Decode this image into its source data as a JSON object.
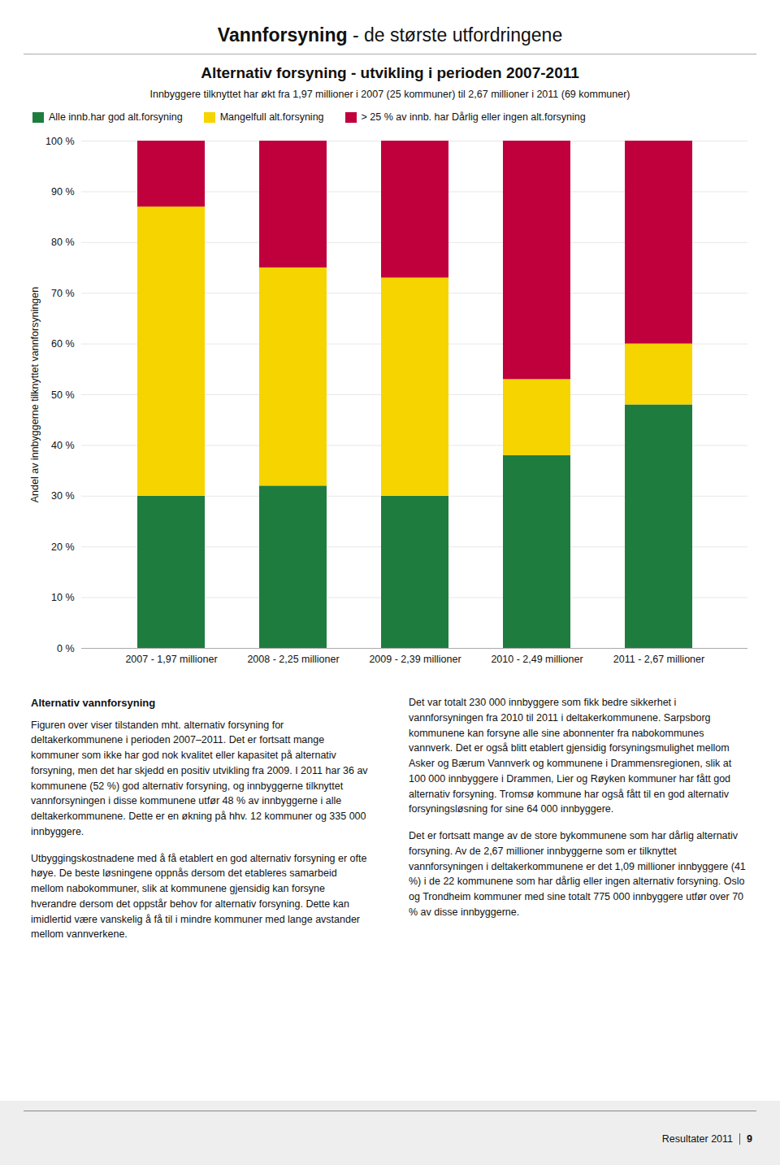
{
  "page_title": {
    "bold": "Vannforsyning",
    "rest": " - de største utfordringene"
  },
  "chart_data": {
    "type": "bar",
    "stacked": true,
    "title": "Alternativ forsyning - utvikling i perioden 2007-2011",
    "subtitle": "Innbyggere tilknyttet har økt fra 1,97 millioner i 2007 (25 kommuner) til 2,67 millioner i 2011 (69 kommuner)",
    "categories": [
      "2007 - 1,97 millioner",
      "2008 - 2,25 millioner",
      "2009 - 2,39 millioner",
      "2010 - 2,49 millioner",
      "2011 - 2,67 millioner"
    ],
    "series": [
      {
        "name": "Alle innb.har god alt.forsyning",
        "color": "#1e7d3e",
        "values": [
          30,
          32,
          30,
          38,
          48
        ]
      },
      {
        "name": "Mangelfull alt.forsyning",
        "color": "#f5d400",
        "values": [
          57,
          43,
          43,
          15,
          12
        ]
      },
      {
        "name": "> 25 % av innb. har Dårlig eller ingen alt.forsyning",
        "color": "#c0003c",
        "values": [
          13,
          25,
          27,
          47,
          40
        ]
      }
    ],
    "ylabel": "Andel av innbyggerne tilknyttet vannforsyningen",
    "ylim": [
      0,
      100
    ],
    "yticks": [
      {
        "value": 0,
        "label": "0 %"
      },
      {
        "value": 10,
        "label": "10 %"
      },
      {
        "value": 20,
        "label": "20 %"
      },
      {
        "value": 30,
        "label": "30 %"
      },
      {
        "value": 40,
        "label": "40 %"
      },
      {
        "value": 50,
        "label": "50 %"
      },
      {
        "value": 60,
        "label": "60 %"
      },
      {
        "value": 70,
        "label": "70 %"
      },
      {
        "value": 80,
        "label": "80 %"
      },
      {
        "value": 90,
        "label": "90 %"
      },
      {
        "value": 100,
        "label": "100 %"
      }
    ],
    "grid": true,
    "legend": "top"
  },
  "body": [
    {
      "heading": "Alternativ vannforsyning",
      "paragraphs": [
        "Figuren over viser tilstanden mht. alternativ forsyning for deltakerkommunene i perioden 2007–2011. Det er fortsatt mange kommuner som ikke har god nok kvalitet eller kapasitet på alternativ forsyning, men det har skjedd en positiv utvikling fra 2009. I 2011 har 36 av kommunene (52 %) god alternativ forsyning, og innbyggerne tilknyttet vannforsyningen i disse kommunene utfør 48 % av innbyggerne i alle deltakerkommunene. Dette er en økning på hhv. 12 kommuner og 335 000 innbyggere.",
        "Utbyggingskostnadene med å få etablert en god alternativ forsyning er ofte høye. De beste løsningene oppnås dersom det etableres samarbeid mellom nabokommuner, slik at kommunene gjensidig kan forsyne hverandre dersom det oppstår behov for alternativ forsyning. Dette kan imidlertid være vanskelig å få til i mindre kommuner med lange avstander mellom vannverkene."
      ]
    },
    {
      "paragraphs": [
        "Det var totalt 230 000 innbyggere som fikk bedre sikkerhet i vannforsyningen fra 2010 til 2011 i deltakerkommunene. Sarpsborg kommunene kan forsyne alle sine abonnenter fra nabokommunes vannverk. Det er også blitt etablert gjensidig forsyningsmulighet mellom Asker og Bærum Vannverk og kommunene i Drammensregionen, slik at 100 000 innbyggere i Drammen, Lier og Røyken kommuner har fått god alternativ forsyning. Tromsø kommune har også fått til en god alternativ forsyningsløsning for sine 64 000 innbyggere.",
        "Det er fortsatt mange av de store bykommunene som har dårlig alternativ forsyning. Av de 2,67 millioner innbyggerne som er tilknyttet vannforsyningen i deltakerkommunene er det 1,09 millioner innbyggere (41 %) i de 22 kommunene som har dårlig eller ingen alternativ forsyning. Oslo og Trondheim kommuner med sine totalt 775 000 innbyggere utfør over 70 % av disse innbyggerne."
      ]
    }
  ],
  "footer": [
    "Resultater 2011",
    "9"
  ]
}
